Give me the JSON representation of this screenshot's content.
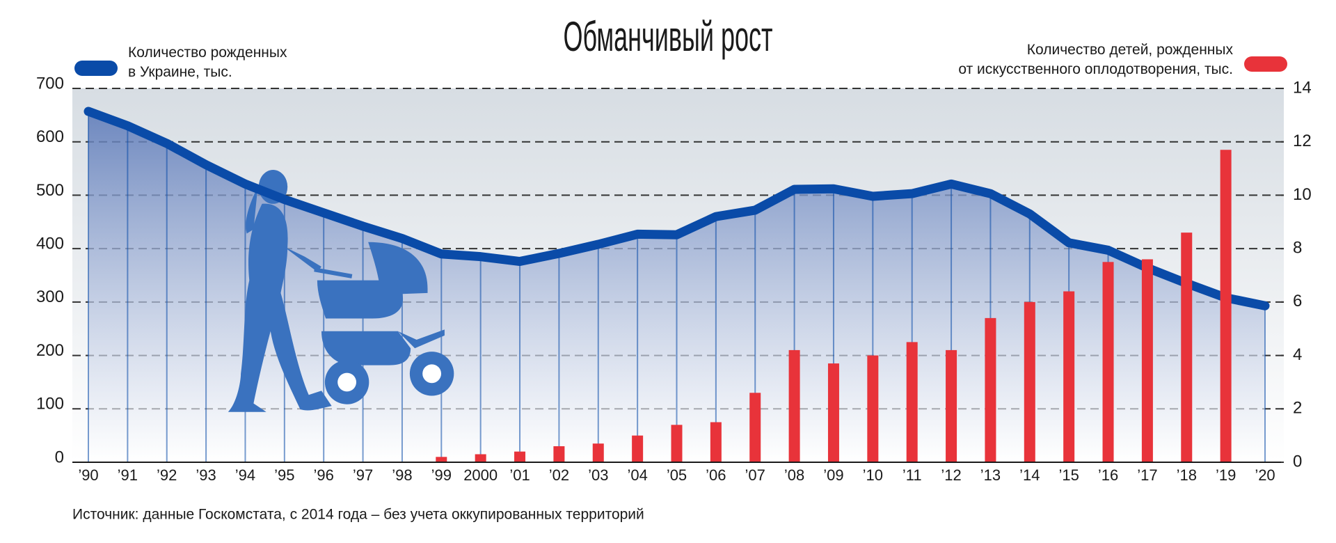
{
  "chart_data": {
    "type": "bar-line",
    "title": "Обманчивый рост",
    "source": "Источник: данные Госкомстата, с 2014 года – без учета оккупированных территорий",
    "categories": [
      "’90",
      "’91",
      "’92",
      "’93",
      "’94",
      "’95",
      "’96",
      "’97",
      "’98",
      "’99",
      "2000",
      "’01",
      "’02",
      "’03",
      "’04",
      "’05",
      "’06",
      "’07",
      "’08",
      "’09",
      "’10",
      "’11",
      "’12",
      "’13",
      "’14",
      "’15",
      "’16",
      "’17",
      "’18",
      "’19",
      "’20"
    ],
    "series": [
      {
        "name": "Количество рожденных\nв Украине, тыс.",
        "type": "line",
        "axis": "y",
        "color": "#0a4ba8",
        "values": [
          657,
          630,
          597,
          557,
          521,
          492,
          467,
          442,
          419,
          390,
          385,
          376,
          391,
          408,
          427,
          426,
          460,
          472,
          511,
          512,
          498,
          503,
          521,
          503,
          465,
          411,
          397,
          364,
          335,
          308,
          293
        ]
      },
      {
        "name": "Количество детей, рожденных\nот искусственного оплодотворения, тыс.",
        "type": "bar",
        "axis": "y2",
        "color": "#e8333a",
        "values": [
          null,
          null,
          null,
          null,
          null,
          null,
          null,
          null,
          null,
          0.2,
          0.3,
          0.4,
          0.6,
          0.7,
          1.0,
          1.4,
          1.5,
          2.6,
          4.2,
          3.7,
          4.0,
          4.5,
          4.2,
          5.4,
          6.0,
          6.4,
          7.5,
          7.6,
          8.6,
          11.7,
          null
        ]
      }
    ],
    "ylim": [
      0,
      700
    ],
    "yticks": [
      0,
      100,
      200,
      300,
      400,
      500,
      600,
      700
    ],
    "y2lim": [
      0,
      14
    ],
    "y2ticks": [
      0,
      2,
      4,
      6,
      8,
      10,
      12,
      14
    ],
    "grid": true
  }
}
